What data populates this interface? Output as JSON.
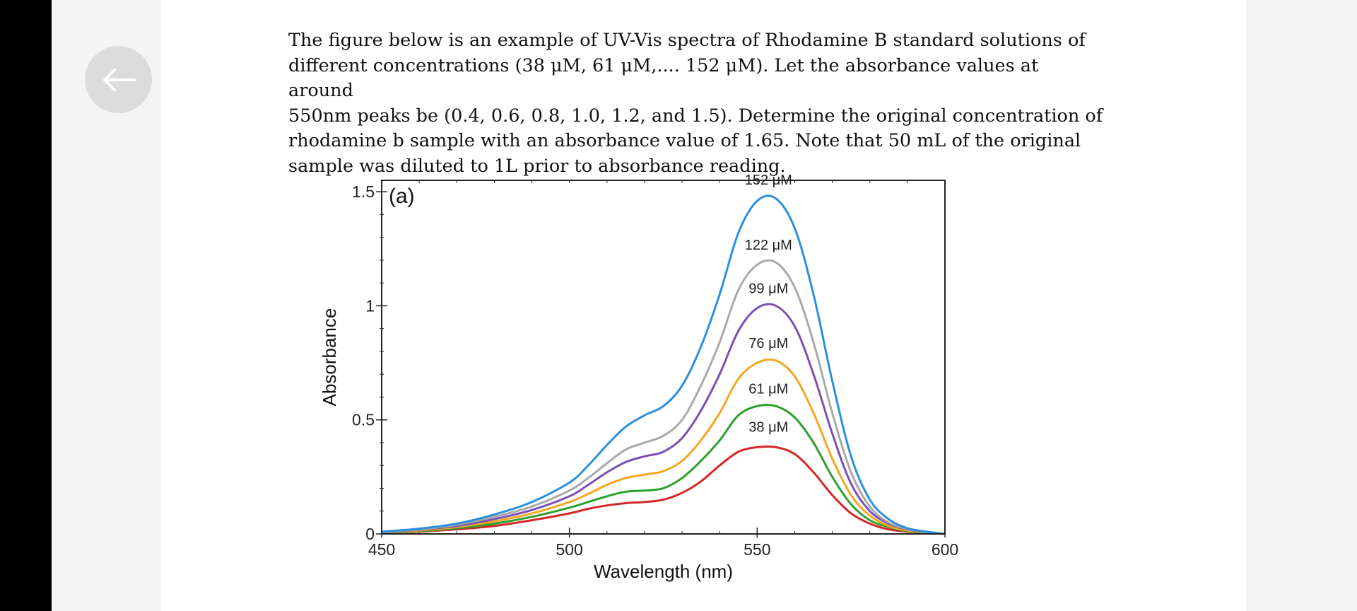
{
  "navigation": {
    "back_icon": "arrow-left-icon"
  },
  "question": {
    "lines": [
      "The figure below is an example of UV-Vis spectra of Rhodamine B standard solutions of",
      "different concentrations (38 μM, 61 μM,.... 152 μM). Let the absorbance values at around",
      "550nm peaks be (0.4, 0.6, 0.8, 1.0, 1.2, and 1.5). Determine the original concentration of",
      "rhodamine b sample with an absorbance value of 1.65. Note that 50 mL of the original",
      "sample was diluted to 1L prior to absorbance reading."
    ]
  },
  "chart_data": {
    "type": "line",
    "panel_label": "(a)",
    "xlabel": "Wavelength (nm)",
    "ylabel": "Absorbance",
    "xlim": [
      450,
      600
    ],
    "ylim": [
      0,
      1.55
    ],
    "x_ticks": [
      450,
      500,
      550,
      600
    ],
    "y_ticks": [
      0,
      0.5,
      1,
      1.5
    ],
    "y_tick_labels": [
      "0",
      "0.5",
      "1",
      "1.5"
    ],
    "grid": false,
    "legend": "none",
    "x": [
      450,
      460,
      470,
      480,
      490,
      500,
      505,
      510,
      515,
      520,
      525,
      530,
      535,
      540,
      545,
      550,
      555,
      560,
      565,
      570,
      575,
      580,
      585,
      590,
      595,
      600
    ],
    "series": [
      {
        "name": "38 μM",
        "color": "#d62728",
        "values": [
          0.005,
          0.01,
          0.02,
          0.035,
          0.06,
          0.09,
          0.11,
          0.125,
          0.135,
          0.14,
          0.15,
          0.18,
          0.23,
          0.3,
          0.36,
          0.38,
          0.38,
          0.35,
          0.27,
          0.17,
          0.09,
          0.045,
          0.02,
          0.01,
          0.005,
          0.0
        ]
      },
      {
        "name": "61 μM",
        "color": "#2ca02c",
        "values": [
          0.006,
          0.012,
          0.025,
          0.045,
          0.075,
          0.115,
          0.14,
          0.165,
          0.185,
          0.19,
          0.2,
          0.245,
          0.32,
          0.41,
          0.52,
          0.56,
          0.56,
          0.51,
          0.4,
          0.25,
          0.13,
          0.06,
          0.03,
          0.012,
          0.006,
          0.0
        ]
      },
      {
        "name": "76 μM",
        "color": "#f5a623",
        "values": [
          0.007,
          0.015,
          0.03,
          0.055,
          0.09,
          0.14,
          0.175,
          0.215,
          0.245,
          0.26,
          0.275,
          0.32,
          0.41,
          0.53,
          0.68,
          0.75,
          0.76,
          0.69,
          0.53,
          0.33,
          0.17,
          0.08,
          0.035,
          0.015,
          0.007,
          0.0
        ]
      },
      {
        "name": "99 μM",
        "color": "#7b4fb5",
        "values": [
          0.008,
          0.018,
          0.035,
          0.065,
          0.105,
          0.165,
          0.215,
          0.27,
          0.315,
          0.34,
          0.36,
          0.42,
          0.54,
          0.7,
          0.89,
          0.99,
          1.0,
          0.91,
          0.7,
          0.44,
          0.22,
          0.1,
          0.045,
          0.02,
          0.008,
          0.0
        ]
      },
      {
        "name": "122 μM",
        "color": "#a9a9a9",
        "values": [
          0.009,
          0.02,
          0.04,
          0.075,
          0.12,
          0.19,
          0.245,
          0.31,
          0.37,
          0.4,
          0.43,
          0.5,
          0.65,
          0.84,
          1.07,
          1.18,
          1.19,
          1.08,
          0.84,
          0.53,
          0.27,
          0.12,
          0.05,
          0.022,
          0.009,
          0.0
        ]
      },
      {
        "name": "152 μM",
        "color": "#2b8fe0",
        "values": [
          0.01,
          0.023,
          0.045,
          0.085,
          0.14,
          0.225,
          0.3,
          0.39,
          0.47,
          0.52,
          0.56,
          0.65,
          0.82,
          1.05,
          1.32,
          1.46,
          1.47,
          1.34,
          1.05,
          0.67,
          0.34,
          0.15,
          0.065,
          0.025,
          0.01,
          0.0
        ]
      }
    ],
    "annotations": [
      {
        "text": "152 μM",
        "series": "152 μM"
      },
      {
        "text": "122 μM",
        "series": "122 μM"
      },
      {
        "text": "99 μM",
        "series": "99 μM"
      },
      {
        "text": "76 μM",
        "series": "76 μM"
      },
      {
        "text": "61 μM",
        "series": "61 μM"
      },
      {
        "text": "38 μM",
        "series": "38 μM"
      }
    ]
  }
}
